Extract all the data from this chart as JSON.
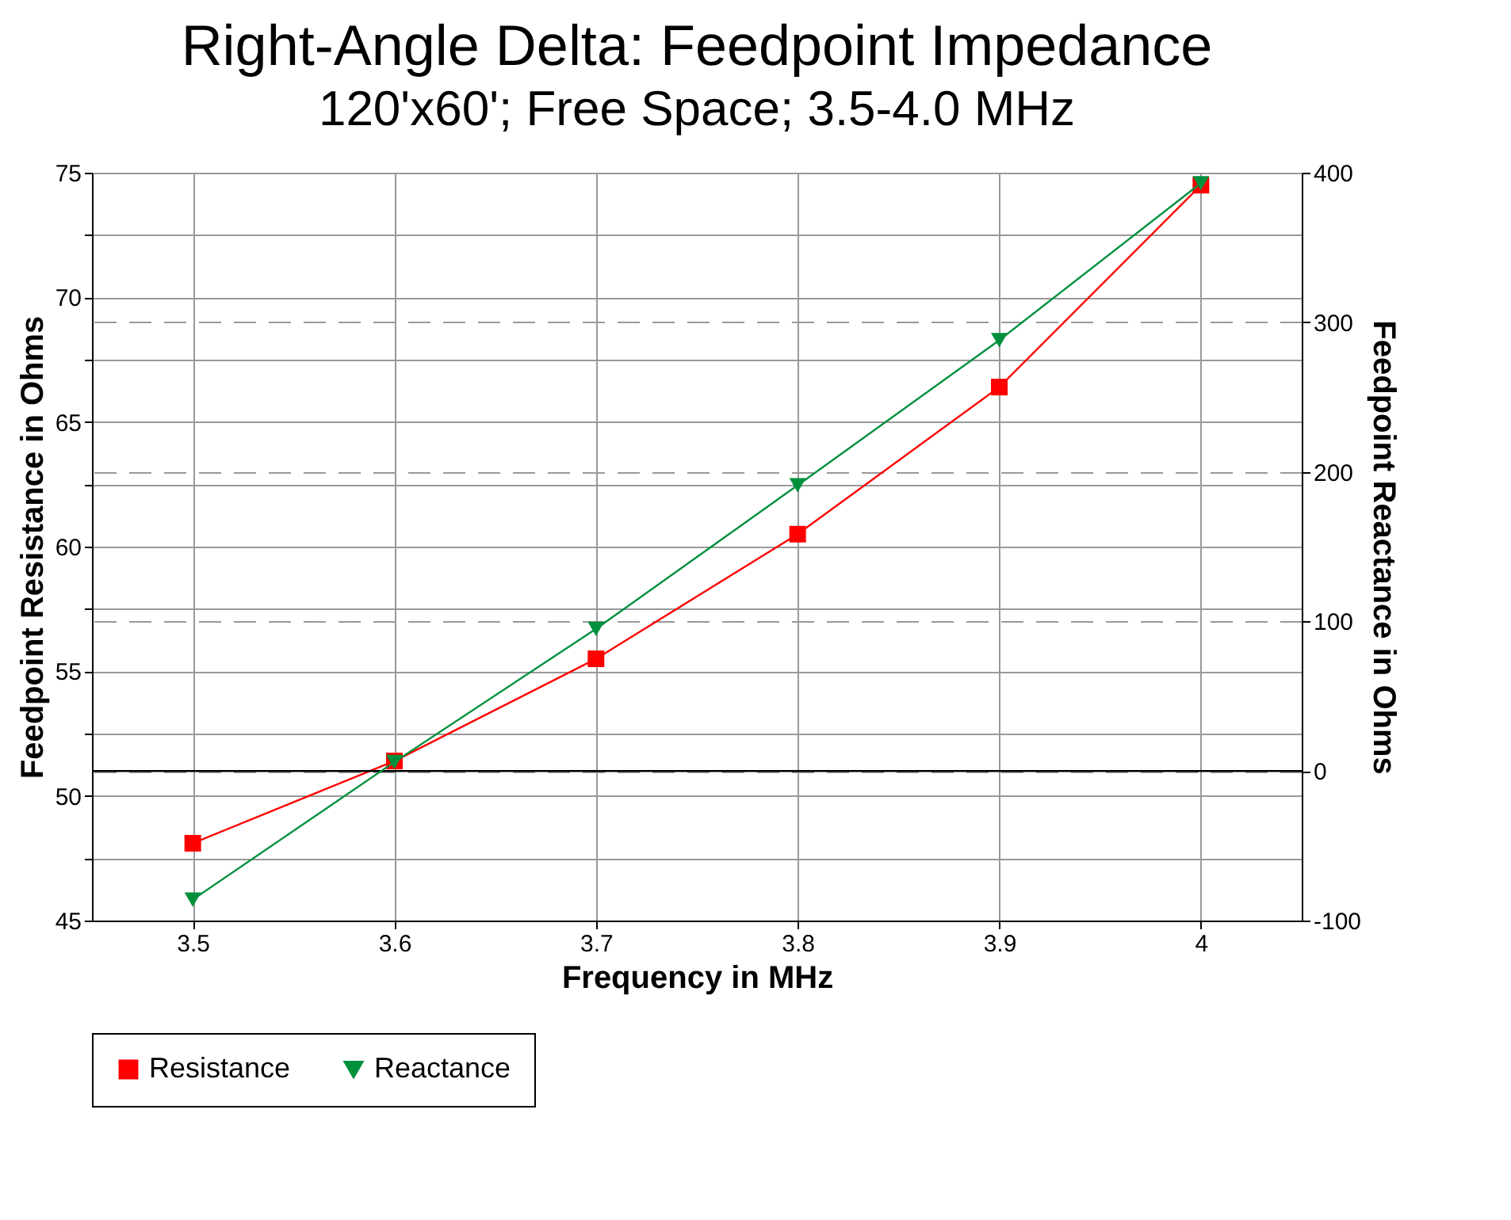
{
  "chart_data": {
    "type": "line",
    "title": "Right-Angle Delta: Feedpoint Impedance",
    "subtitle": "120'x60'; Free Space; 3.5-4.0 MHz",
    "xlabel": "Frequency in MHz",
    "ylabel": "Feedpoint Resistance in Ohms",
    "y2label": "Feedpoint Reactance in Ohms",
    "x": [
      3.5,
      3.6,
      3.7,
      3.8,
      3.9,
      4
    ],
    "series": [
      {
        "name": "Resistance",
        "color": "#ff0000",
        "marker": "square",
        "values": [
          48.1,
          51.4,
          55.5,
          60.5,
          66.4,
          74.5
        ]
      },
      {
        "name": "Reactance",
        "color": "#00903c",
        "marker": "triangle",
        "axis": "y2",
        "values": [
          -86,
          6,
          95,
          191,
          288,
          393
        ]
      }
    ],
    "xlim": [
      3.45,
      4.05
    ],
    "xticks": [
      3.5,
      3.6,
      3.7,
      3.8,
      3.9,
      4
    ],
    "ylim": [
      45,
      75
    ],
    "yticks": [
      45,
      {
        "value": 47.5,
        "label": null
      },
      50,
      {
        "value": 52.5,
        "label": null
      },
      55,
      {
        "value": 57.5,
        "label": null
      },
      60,
      {
        "value": 62.5,
        "label": null
      },
      65,
      {
        "value": 67.5,
        "label": null
      },
      70,
      {
        "value": 72.5,
        "label": null
      },
      75
    ],
    "y2lim": [
      -100,
      400
    ],
    "y2ticks": [
      -100,
      0,
      100,
      200,
      300,
      400
    ],
    "ref_lines": [
      {
        "axis": "y2",
        "value": 0,
        "color": "#000000"
      }
    ],
    "grid": true,
    "legend": "bottom",
    "line_style": "solid"
  }
}
